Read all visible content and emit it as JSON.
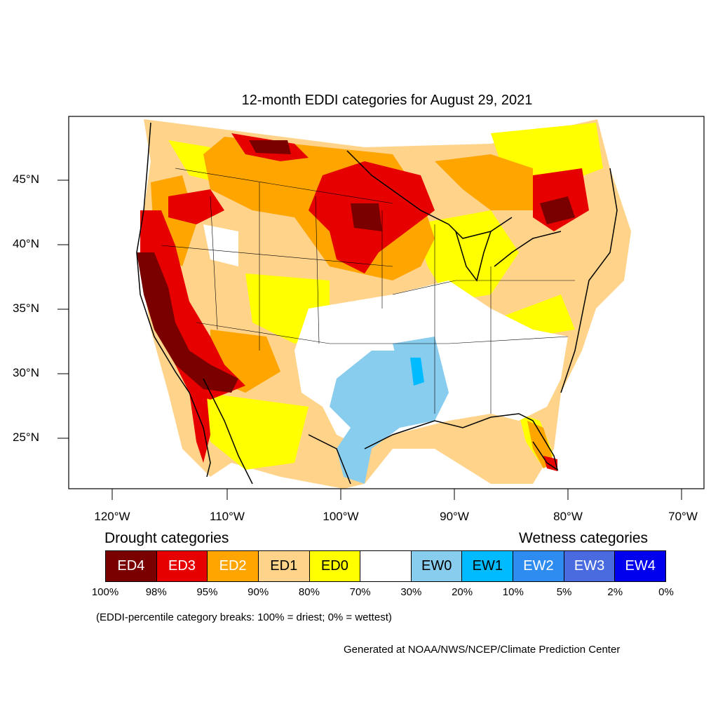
{
  "title": "12-month EDDI categories for August 29, 2021",
  "map": {
    "lat_labels": [
      "45°N",
      "40°N",
      "35°N",
      "30°N",
      "25°N"
    ],
    "lon_labels": [
      "120°W",
      "110°W",
      "100°W",
      "90°W",
      "80°W",
      "70°W"
    ],
    "category_colors": {
      "ED4": "#7a0000",
      "ED3": "#e60000",
      "ED2": "#ffaa00",
      "ED1": "#ffd38a",
      "ED0": "#ffff00",
      "normal": "#ffffff",
      "EW0": "#88ccee",
      "EW1": "#00bbff",
      "EW2": "#2e8cf0",
      "EW3": "#4a6be0",
      "EW4": "#0000ee"
    }
  },
  "legend": {
    "drought_heading": "Drought categories",
    "wetness_heading": "Wetness categories",
    "categories": [
      {
        "label": "ED4",
        "color": "#7a0000",
        "text_color": "#ffffff"
      },
      {
        "label": "ED3",
        "color": "#e60000",
        "text_color": "#ffffff"
      },
      {
        "label": "ED2",
        "color": "#ffa500",
        "text_color": "#ffffff"
      },
      {
        "label": "ED1",
        "color": "#ffd38a",
        "text_color": "#000000"
      },
      {
        "label": "ED0",
        "color": "#ffff00",
        "text_color": "#000000"
      },
      {
        "label": "",
        "color": "#ffffff",
        "text_color": "#000000"
      },
      {
        "label": "EW0",
        "color": "#88ccee",
        "text_color": "#000000"
      },
      {
        "label": "EW1",
        "color": "#00bbff",
        "text_color": "#000000"
      },
      {
        "label": "EW2",
        "color": "#2e8cf0",
        "text_color": "#ffffff"
      },
      {
        "label": "EW3",
        "color": "#4a6be0",
        "text_color": "#ffffff"
      },
      {
        "label": "EW4",
        "color": "#0000ee",
        "text_color": "#ffffff"
      }
    ],
    "percent_breaks": [
      "100%",
      "98%",
      "95%",
      "90%",
      "80%",
      "70%",
      "30%",
      "20%",
      "10%",
      "5%",
      "2%",
      "0%"
    ]
  },
  "note": "(EDDI-percentile category breaks: 100% = driest; 0% = wettest)",
  "credit": "Generated at NOAA/NWS/NCEP/Climate Prediction Center"
}
